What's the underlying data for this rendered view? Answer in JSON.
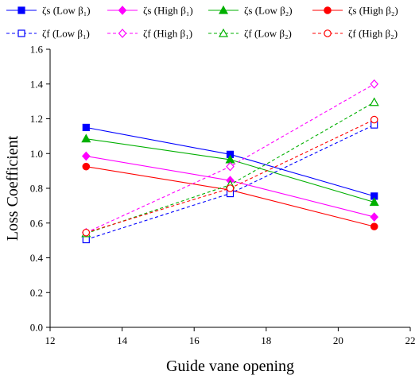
{
  "chart_data": {
    "type": "line",
    "title": "",
    "xlabel": "Guide vane opening",
    "ylabel": "Loss Coefficient",
    "xlim": [
      12,
      22
    ],
    "ylim": [
      0,
      1.6
    ],
    "xticks": [
      "12",
      "14",
      "16",
      "18",
      "20",
      "22"
    ],
    "yticks": [
      "0.0",
      "0.2",
      "0.4",
      "0.6",
      "0.8",
      "1.0",
      "1.2",
      "1.4",
      "1.6"
    ],
    "grid": false,
    "legend_position": "top",
    "x": [
      13,
      17,
      21
    ],
    "series": [
      {
        "name": "ζs (Low β₁)",
        "values": [
          1.15,
          0.995,
          0.755
        ],
        "color": "#0000ff",
        "marker": "square",
        "filled": true,
        "dashed": false
      },
      {
        "name": "ζs (High β₁)",
        "values": [
          0.985,
          0.845,
          0.635
        ],
        "color": "#ff00ff",
        "marker": "diamond",
        "filled": true,
        "dashed": false
      },
      {
        "name": "ζs (Low β₂)",
        "values": [
          1.085,
          0.965,
          0.72
        ],
        "color": "#00b000",
        "marker": "triangle",
        "filled": true,
        "dashed": false
      },
      {
        "name": "ζs (High β₂)",
        "values": [
          0.925,
          0.79,
          0.58
        ],
        "color": "#ff0000",
        "marker": "circle",
        "filled": true,
        "dashed": false
      },
      {
        "name": "ζf (Low β₁)",
        "values": [
          0.505,
          0.77,
          1.165
        ],
        "color": "#0000ff",
        "marker": "square",
        "filled": false,
        "dashed": true
      },
      {
        "name": "ζf (High β₁)",
        "values": [
          0.545,
          0.925,
          1.4
        ],
        "color": "#ff00ff",
        "marker": "diamond",
        "filled": false,
        "dashed": true
      },
      {
        "name": "ζf (Low β₂)",
        "values": [
          0.54,
          0.82,
          1.295
        ],
        "color": "#00b000",
        "marker": "triangle",
        "filled": false,
        "dashed": true
      },
      {
        "name": "ζf (High β₂)",
        "values": [
          0.545,
          0.8,
          1.195
        ],
        "color": "#ff0000",
        "marker": "circle",
        "filled": false,
        "dashed": true
      }
    ]
  }
}
